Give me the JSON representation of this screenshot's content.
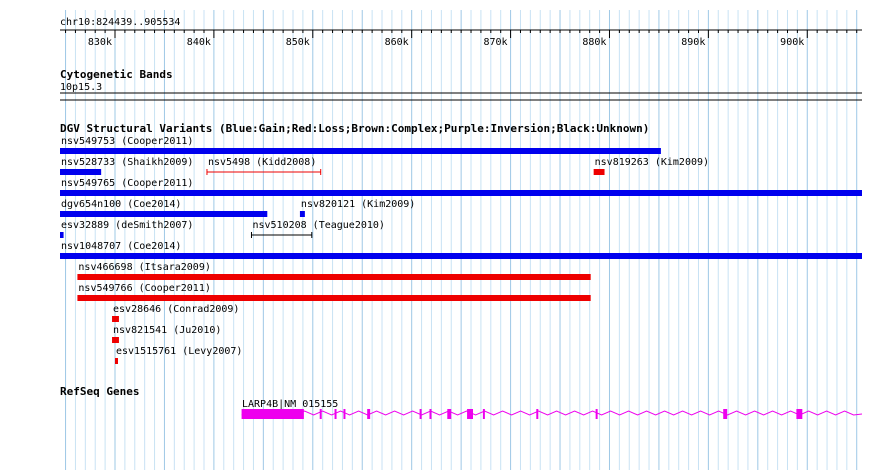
{
  "region": "chr10:824439..905534",
  "ruler": {
    "ticks": [
      {
        "pos": 830000,
        "label": "830k"
      },
      {
        "pos": 840000,
        "label": "840k"
      },
      {
        "pos": 850000,
        "label": "850k"
      },
      {
        "pos": 860000,
        "label": "860k"
      },
      {
        "pos": 870000,
        "label": "870k"
      },
      {
        "pos": 880000,
        "label": "880k"
      },
      {
        "pos": 890000,
        "label": "890k"
      },
      {
        "pos": 900000,
        "label": "900k"
      }
    ]
  },
  "tracks": {
    "cyto": {
      "title": "Cytogenetic Bands",
      "band": "10p15.3"
    },
    "dgv": {
      "title": "DGV Structural Variants (Blue:Gain;Red:Loss;Brown:Complex;Purple:Inversion;Black:Unknown)",
      "colors": {
        "gain": "#0000ee",
        "loss": "#ee0000",
        "unknown": "#000000"
      },
      "features": [
        {
          "label": "nsv549753 (Cooper2011)",
          "type": "gain",
          "start": 824439,
          "end": 885200,
          "row": 0
        },
        {
          "label": "nsv528733 (Shaikh2009)",
          "type": "gain",
          "start": 824439,
          "end": 828600,
          "row": 1
        },
        {
          "label": "nsv5498 (Kidd2008)",
          "type": "loss",
          "start": 839300,
          "end": 850800,
          "row": 1,
          "style": "line"
        },
        {
          "label": "nsv819263 (Kim2009)",
          "type": "loss",
          "start": 878400,
          "end": 879500,
          "row": 1
        },
        {
          "label": "nsv549765 (Cooper2011)",
          "type": "gain",
          "start": 824439,
          "end": 905534,
          "row": 2
        },
        {
          "label": "dgv654n100 (Coe2014)",
          "type": "gain",
          "start": 824439,
          "end": 845400,
          "row": 3
        },
        {
          "label": "nsv820121 (Kim2009)",
          "type": "gain",
          "start": 848700,
          "end": 849200,
          "row": 3
        },
        {
          "label": "esv32889 (deSmith2007)",
          "type": "gain",
          "start": 824439,
          "end": 824800,
          "row": 4
        },
        {
          "label": "nsv510208 (Teague2010)",
          "type": "unknown",
          "start": 843800,
          "end": 849900,
          "row": 4,
          "style": "line"
        },
        {
          "label": "nsv1048707 (Coe2014)",
          "type": "gain",
          "start": 824439,
          "end": 905534,
          "row": 5
        },
        {
          "label": "nsv466698 (Itsara2009)",
          "type": "loss",
          "start": 826200,
          "end": 878100,
          "row": 6
        },
        {
          "label": "nsv549766 (Cooper2011)",
          "type": "loss",
          "start": 826200,
          "end": 878100,
          "row": 7
        },
        {
          "label": "esv28646 (Conrad2009)",
          "type": "loss",
          "start": 829700,
          "end": 830400,
          "row": 8
        },
        {
          "label": "nsv821541 (Ju2010)",
          "type": "loss",
          "start": 829700,
          "end": 830400,
          "row": 9
        },
        {
          "label": "esv1515761 (Levy2007)",
          "type": "loss",
          "start": 830000,
          "end": 830200,
          "row": 10
        }
      ]
    },
    "refseq": {
      "title": "RefSeq Genes",
      "color": "#ee00ee",
      "gene": {
        "label": "LARP4B|NM_015155",
        "start": 842800,
        "end": 905534,
        "utr": [
          842800,
          849100
        ],
        "exons": [
          [
            850700,
            850900
          ],
          [
            852200,
            852400
          ],
          [
            853100,
            853200
          ],
          [
            855500,
            855800
          ],
          [
            860800,
            860900
          ],
          [
            861800,
            862000
          ],
          [
            863600,
            864000
          ],
          [
            865600,
            866200
          ],
          [
            867200,
            867400
          ],
          [
            872600,
            872800
          ],
          [
            878600,
            878800
          ],
          [
            891500,
            891900
          ],
          [
            898900,
            899500
          ]
        ]
      }
    }
  }
}
